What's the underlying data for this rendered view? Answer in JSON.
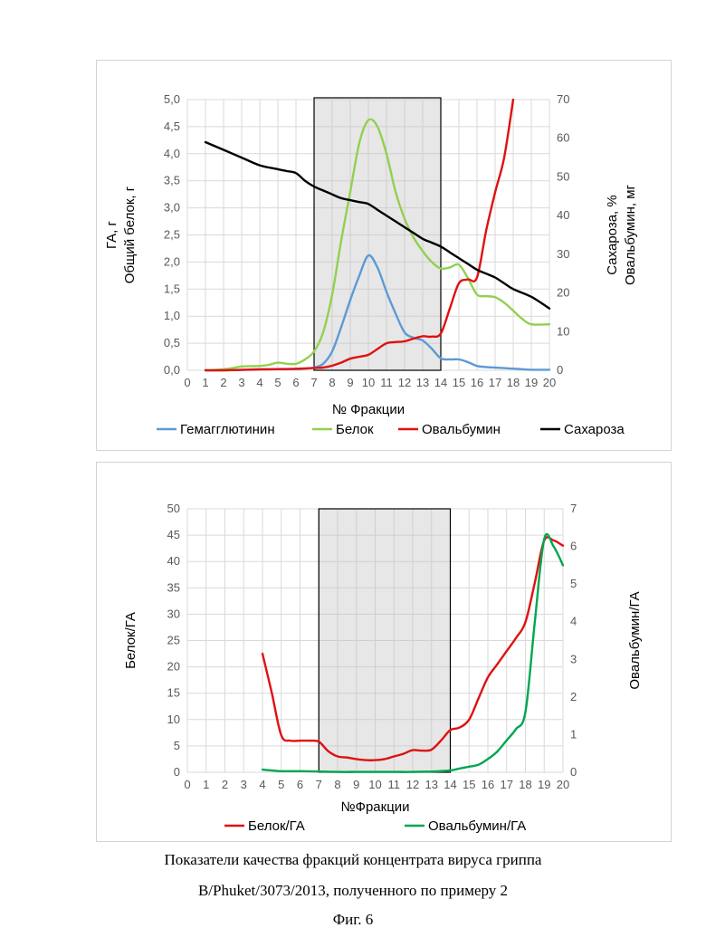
{
  "caption": {
    "line1": "Показатели качества фракций концентрата вируса гриппа",
    "line2": "B/Phuket/3073/2013, полученного по примеру 2",
    "fig": "Фиг. 6"
  },
  "chart_data": [
    {
      "type": "line",
      "xlabel": "№ Фракции",
      "ylabel_left": [
        "ГА, г",
        "Общий белок, г"
      ],
      "ylabel_right": [
        "Сахароза, %",
        "Овальбумин, мг"
      ],
      "x_ticks": [
        "0",
        "1",
        "2",
        "3",
        "4",
        "5",
        "6",
        "7",
        "8",
        "9",
        "10",
        "11",
        "12",
        "13",
        "14",
        "15",
        "16",
        "17",
        "18",
        "19",
        "20"
      ],
      "y_left_ticks": [
        "0,0",
        "0,5",
        "1,0",
        "1,5",
        "2,0",
        "2,5",
        "3,0",
        "3,5",
        "4,0",
        "4,5",
        "5,0"
      ],
      "y_right_ticks": [
        "0",
        "10",
        "20",
        "30",
        "40",
        "50",
        "60",
        "70"
      ],
      "xlim": [
        0,
        20
      ],
      "ylim_left": [
        0,
        5
      ],
      "ylim_right": [
        0,
        70
      ],
      "shaded_region": [
        7,
        14
      ],
      "legend_position": "bottom",
      "series": [
        {
          "name": "Гемагглютинин",
          "axis": "left",
          "color": "#5b9bd5",
          "x": [
            1,
            2,
            3,
            4,
            5,
            6,
            6.5,
            7,
            7.5,
            8,
            8.5,
            9,
            9.5,
            10,
            10.5,
            11,
            11.5,
            12,
            12.5,
            13,
            13.5,
            14,
            14.5,
            15,
            15.5,
            16,
            16.5,
            17,
            17.5,
            18,
            18.5,
            19,
            20
          ],
          "y": [
            0,
            0,
            0.01,
            0.02,
            0.02,
            0.02,
            0.03,
            0.05,
            0.12,
            0.35,
            0.8,
            1.3,
            1.75,
            2.12,
            1.9,
            1.45,
            1.05,
            0.7,
            0.6,
            0.55,
            0.4,
            0.22,
            0.2,
            0.2,
            0.15,
            0.08,
            0.06,
            0.05,
            0.04,
            0.03,
            0.02,
            0.01,
            0.01
          ]
        },
        {
          "name": "Белок",
          "axis": "left",
          "color": "#92d050",
          "x": [
            1,
            2,
            2.5,
            3,
            4,
            4.5,
            5,
            5.5,
            6,
            6.5,
            7,
            7.5,
            8,
            8.5,
            9,
            9.5,
            10,
            10.5,
            11,
            11.5,
            12,
            12.5,
            13,
            13.5,
            14,
            14.5,
            15,
            15.5,
            16,
            16.5,
            17,
            17.5,
            18,
            18.5,
            19,
            20
          ],
          "y": [
            0,
            0.02,
            0.04,
            0.07,
            0.08,
            0.1,
            0.14,
            0.12,
            0.12,
            0.2,
            0.35,
            0.7,
            1.4,
            2.4,
            3.3,
            4.2,
            4.62,
            4.5,
            4.0,
            3.3,
            2.8,
            2.45,
            2.2,
            2.0,
            1.88,
            1.9,
            1.95,
            1.7,
            1.4,
            1.37,
            1.35,
            1.25,
            1.1,
            0.95,
            0.85,
            0.85
          ]
        },
        {
          "name": "Овальбумин",
          "axis": "right",
          "color": "#e01010",
          "x": [
            1,
            2,
            3,
            4,
            5,
            6,
            7,
            7.5,
            8,
            8.5,
            9,
            9.5,
            10,
            10.5,
            11,
            11.5,
            12,
            12.5,
            13,
            13.5,
            14,
            14.5,
            15,
            15.5,
            16,
            16.5,
            17,
            17.5,
            18
          ],
          "y": [
            0,
            0,
            0.1,
            0.2,
            0.3,
            0.4,
            0.6,
            0.7,
            1.2,
            2.0,
            3.0,
            3.5,
            4.0,
            5.5,
            7.0,
            7.3,
            7.5,
            8.2,
            8.8,
            8.7,
            9.5,
            16,
            22.5,
            23.5,
            24,
            36,
            46,
            55,
            70
          ]
        },
        {
          "name": "Сахароза",
          "axis": "right",
          "color": "#000000",
          "x": [
            1,
            2,
            3,
            4,
            5,
            5.5,
            6,
            6.5,
            7,
            7.5,
            8,
            8.5,
            9,
            9.5,
            10,
            10.5,
            11,
            11.5,
            12,
            12.5,
            13,
            13.5,
            14,
            14.5,
            15,
            15.5,
            16,
            16.5,
            17,
            17.5,
            18,
            19,
            20
          ],
          "y": [
            59,
            57,
            55,
            53,
            52,
            51.5,
            51,
            49,
            47.5,
            46.5,
            45.5,
            44.5,
            44,
            43.5,
            43,
            41.5,
            40,
            38.5,
            37,
            35.5,
            34,
            33,
            32,
            30.5,
            29,
            27.5,
            26,
            25,
            24,
            22.5,
            21,
            19,
            16
          ]
        }
      ]
    },
    {
      "type": "line",
      "xlabel": "№Фракции",
      "ylabel_left": "Белок/ГА",
      "ylabel_right": "Овальбумин/ГА",
      "x_ticks": [
        "0",
        "1",
        "2",
        "3",
        "4",
        "5",
        "6",
        "7",
        "8",
        "9",
        "10",
        "11",
        "12",
        "13",
        "14",
        "15",
        "16",
        "17",
        "18",
        "19",
        "20"
      ],
      "y_left_ticks": [
        "0",
        "5",
        "10",
        "15",
        "20",
        "25",
        "30",
        "35",
        "40",
        "45",
        "50"
      ],
      "y_right_ticks": [
        "0",
        "1",
        "2",
        "3",
        "4",
        "5",
        "6",
        "7"
      ],
      "xlim": [
        0,
        20
      ],
      "ylim_left": [
        0,
        50
      ],
      "ylim_right": [
        0,
        7
      ],
      "shaded_region": [
        7,
        14
      ],
      "legend_position": "bottom",
      "series": [
        {
          "name": "Белок/ГА",
          "axis": "left",
          "color": "#e01010",
          "x": [
            4,
            4.5,
            5,
            5.5,
            6,
            6.5,
            7,
            7.5,
            8,
            8.5,
            9,
            9.5,
            10,
            10.5,
            11,
            11.5,
            12,
            12.5,
            13,
            13.5,
            14,
            14.5,
            15,
            15.5,
            16,
            16.5,
            17,
            17.5,
            18,
            18.5,
            19,
            19.5,
            20
          ],
          "y": [
            22.5,
            15,
            7,
            6,
            6,
            6,
            5.8,
            4,
            3,
            2.8,
            2.5,
            2.3,
            2.3,
            2.5,
            3,
            3.5,
            4.2,
            4.1,
            4.3,
            6,
            8,
            8.5,
            10,
            14,
            18,
            20.5,
            23,
            25.5,
            28.5,
            36,
            44,
            44,
            43
          ]
        },
        {
          "name": "Овальбумин/ГА",
          "axis": "right",
          "color": "#00a651",
          "x": [
            4,
            5,
            6,
            7,
            8,
            9,
            10,
            11,
            12,
            13,
            14,
            14.5,
            15,
            15.5,
            16,
            16.5,
            17,
            17.5,
            18,
            18.5,
            19,
            19.5,
            20
          ],
          "y": [
            0.07,
            0.03,
            0.03,
            0.02,
            0.01,
            0.01,
            0.01,
            0.01,
            0.01,
            0.02,
            0.05,
            0.1,
            0.15,
            0.2,
            0.35,
            0.55,
            0.85,
            1.15,
            1.6,
            4.0,
            6.2,
            6.0,
            5.5
          ]
        }
      ]
    }
  ]
}
